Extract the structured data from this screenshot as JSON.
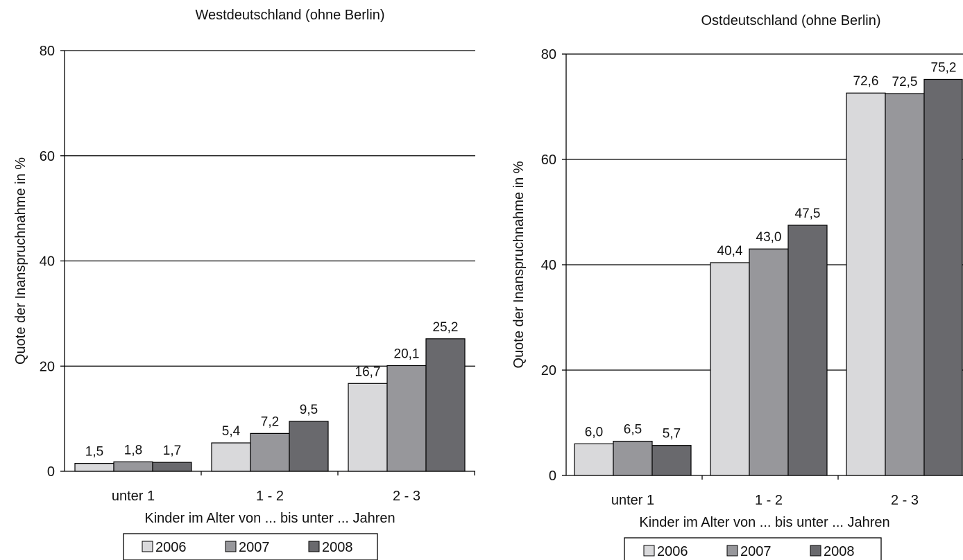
{
  "chart_data": [
    {
      "type": "bar",
      "title": "Westdeutschland (ohne Berlin)",
      "xlabel": "Kinder im Alter von ... bis unter ... Jahren",
      "ylabel": "Quote der Inanspruchnahme in %",
      "ylim": [
        0,
        80
      ],
      "yticks": [
        "0",
        "20",
        "40",
        "60",
        "80"
      ],
      "grid": true,
      "legend_position": "bottom",
      "categories": [
        "unter 1",
        "1 -  2",
        "2 -  3"
      ],
      "series": [
        {
          "name": "2006",
          "color": "#d9d9db",
          "values": [
            1.5,
            5.4,
            16.7
          ],
          "labels": [
            "1,5",
            "5,4",
            "16,7"
          ]
        },
        {
          "name": "2007",
          "color": "#97979b",
          "values": [
            1.8,
            7.2,
            20.1
          ],
          "labels": [
            "1,8",
            "7,2",
            "20,1"
          ]
        },
        {
          "name": "2008",
          "color": "#69696d",
          "values": [
            1.7,
            9.5,
            25.2
          ],
          "labels": [
            "1,7",
            "9,5",
            "25,2"
          ]
        }
      ]
    },
    {
      "type": "bar",
      "title": "Ostdeutschland (ohne Berlin)",
      "xlabel": "Kinder im Alter von ... bis unter ... Jahren",
      "ylabel": "Quote der Inanspruchnahme in %",
      "ylim": [
        0,
        80
      ],
      "yticks": [
        "0",
        "20",
        "40",
        "60",
        "80"
      ],
      "grid": true,
      "legend_position": "bottom",
      "categories": [
        "unter 1",
        "1 -  2",
        "2 - 3"
      ],
      "series": [
        {
          "name": "2006",
          "color": "#d9d9db",
          "values": [
            6.0,
            40.4,
            72.6
          ],
          "labels": [
            "6,0",
            "40,4",
            "72,6"
          ]
        },
        {
          "name": "2007",
          "color": "#97979b",
          "values": [
            6.5,
            43.0,
            72.5
          ],
          "labels": [
            "6,5",
            "43,0",
            "72,5"
          ]
        },
        {
          "name": "2008",
          "color": "#69696d",
          "values": [
            5.7,
            47.5,
            75.2
          ],
          "labels": [
            "5,7",
            "47,5",
            "75,2"
          ]
        }
      ]
    }
  ]
}
